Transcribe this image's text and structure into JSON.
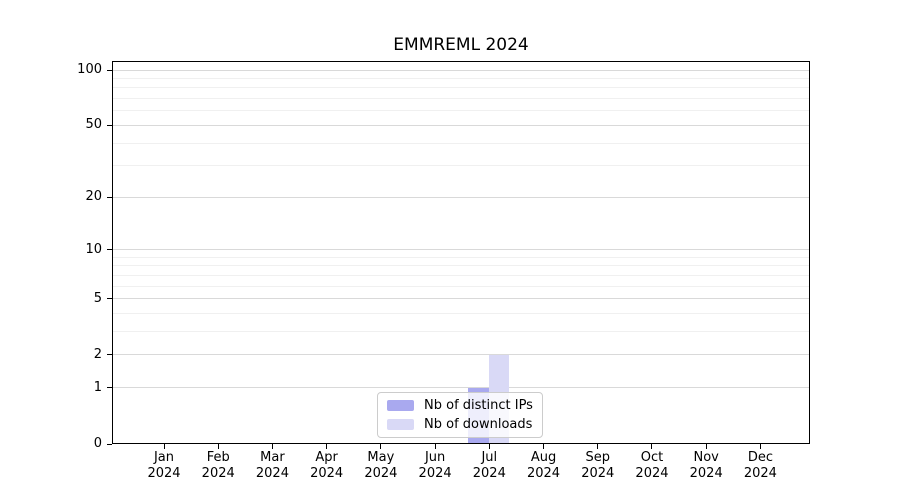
{
  "chart_data": {
    "type": "bar",
    "title": "EMMREML 2024",
    "categories": [
      "Jan\n2024",
      "Feb\n2024",
      "Mar\n2024",
      "Apr\n2024",
      "May\n2024",
      "Jun\n2024",
      "Jul\n2024",
      "Aug\n2024",
      "Sep\n2024",
      "Oct\n2024",
      "Nov\n2024",
      "Dec\n2024"
    ],
    "series": [
      {
        "name": "Nb of distinct IPs",
        "color": "#a9a9ef",
        "values": [
          0,
          0,
          0,
          0,
          0,
          0,
          1,
          0,
          0,
          0,
          0,
          0
        ]
      },
      {
        "name": "Nb of downloads",
        "color": "#d9d9f6",
        "values": [
          0,
          0,
          0,
          0,
          0,
          0,
          2,
          0,
          0,
          0,
          0,
          0
        ]
      }
    ],
    "xlabel": "",
    "ylabel": "",
    "y_scale": "log1p",
    "ylim": [
      0,
      110
    ],
    "y_ticks": [
      0,
      1,
      2,
      5,
      10,
      20,
      50,
      100
    ],
    "y_minor_ticks": [
      3,
      4,
      6,
      7,
      8,
      9,
      30,
      40,
      60,
      70,
      80,
      90
    ],
    "grid": "horizontal",
    "legend_position": "lower center"
  }
}
